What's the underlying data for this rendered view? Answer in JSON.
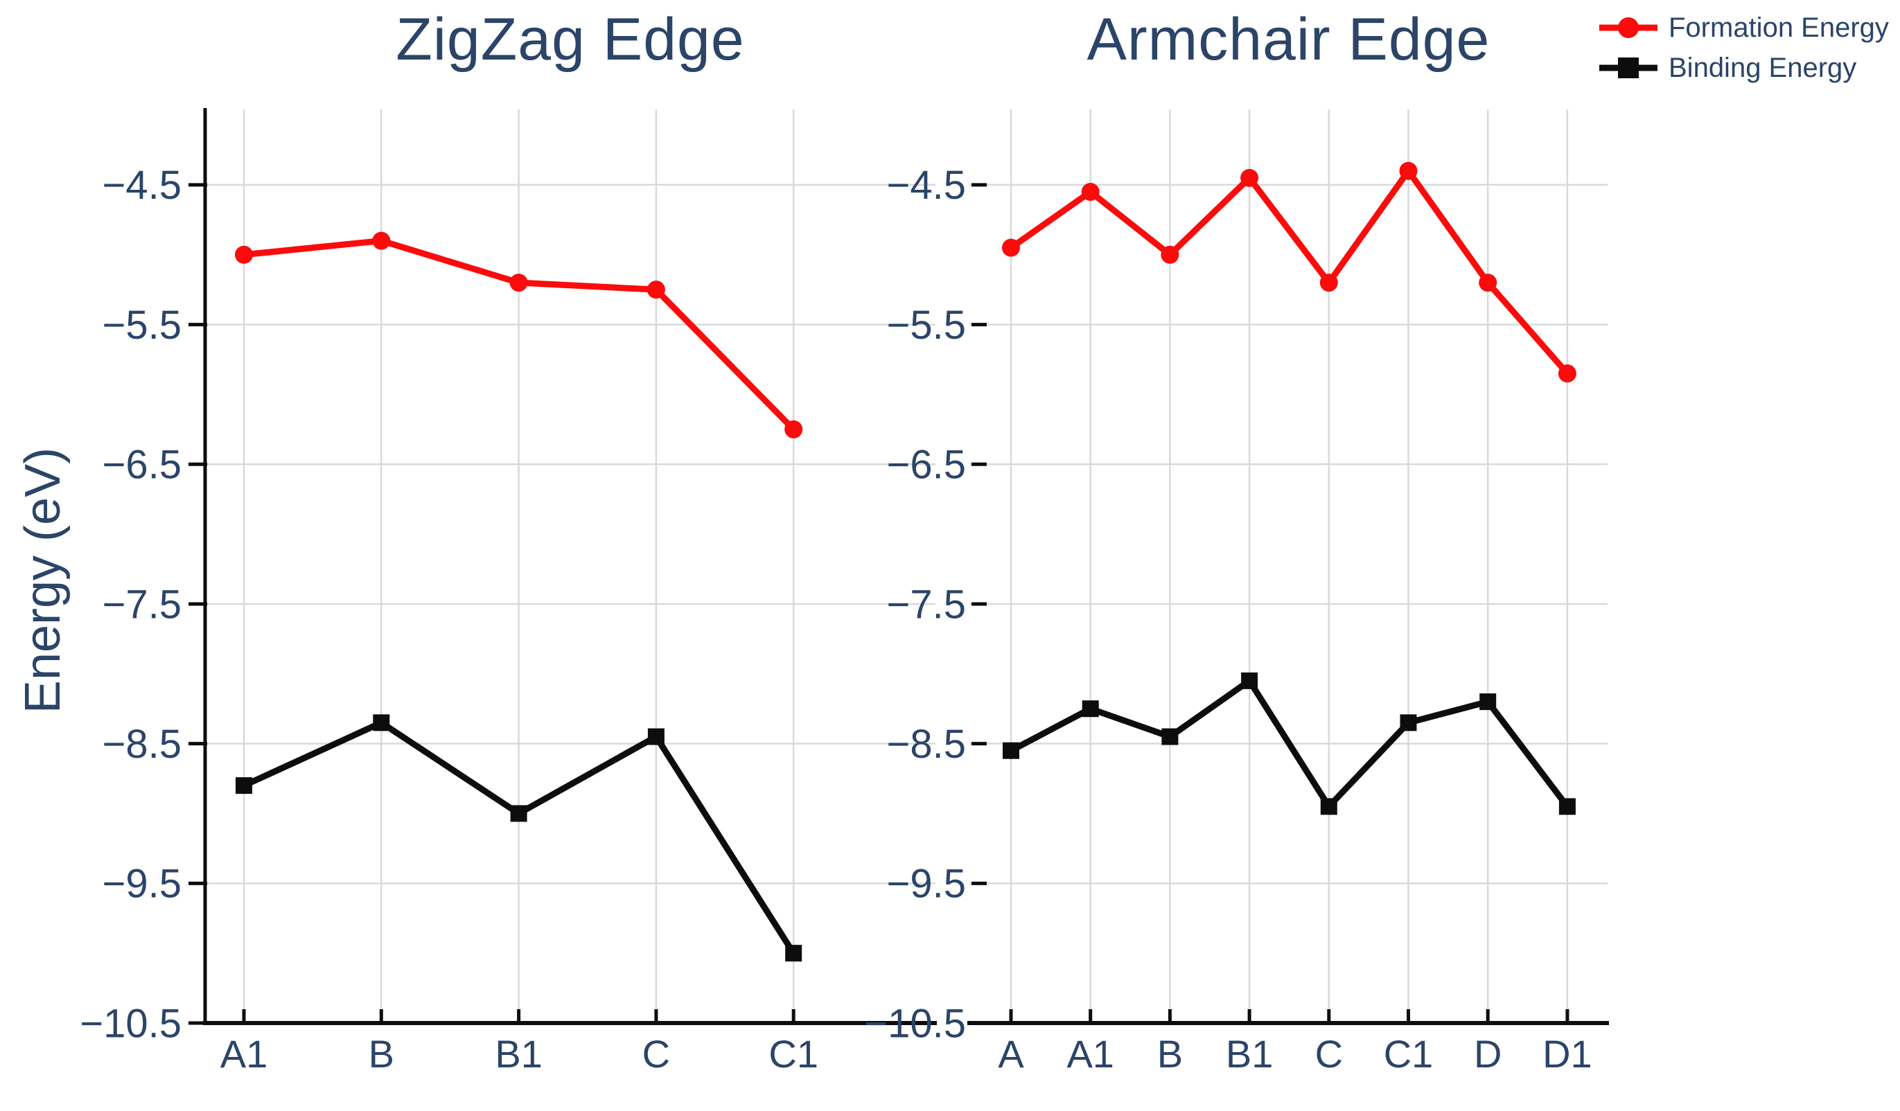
{
  "figure": {
    "background": "#ffffff",
    "text_color": "#2b4468",
    "grid_color": "#d9d9d9",
    "axis_color": "#0d0d0d",
    "ylabel": "Energy (eV)",
    "legend": {
      "position": "top-right",
      "items": [
        {
          "label": "Formation Energy",
          "color": "#fb0b0b",
          "marker": "circle"
        },
        {
          "label": "Binding Energy",
          "color": "#0d0d0d",
          "marker": "square"
        }
      ]
    }
  },
  "chart_data": [
    {
      "type": "line",
      "title": "ZigZag Edge",
      "categories": [
        "A1",
        "B",
        "B1",
        "C",
        "C1"
      ],
      "series": [
        {
          "name": "Formation Energy",
          "marker": "circle",
          "color": "#fb0b0b",
          "values": [
            -5.0,
            -4.9,
            -5.2,
            -5.25,
            -6.25
          ]
        },
        {
          "name": "Binding Energy",
          "marker": "square",
          "color": "#0d0d0d",
          "values": [
            -8.8,
            -8.35,
            -9.0,
            -8.45,
            -10.0
          ]
        }
      ],
      "xlabel": "",
      "ylabel": "Energy (eV)",
      "yticks": [
        -4.5,
        -5.5,
        -6.5,
        -7.5,
        -8.5,
        -9.5,
        -10.5
      ],
      "ylim": [
        -10.5,
        -3.96
      ],
      "grid": true,
      "legend_position": "top-right"
    },
    {
      "type": "line",
      "title": "Armchair Edge",
      "categories": [
        "A",
        "A1",
        "B",
        "B1",
        "C",
        "C1",
        "D",
        "D1"
      ],
      "series": [
        {
          "name": "Formation Energy",
          "marker": "circle",
          "color": "#fb0b0b",
          "values": [
            -4.95,
            -4.55,
            -5.0,
            -4.45,
            -5.2,
            -4.4,
            -5.2,
            -5.85
          ]
        },
        {
          "name": "Binding Energy",
          "marker": "square",
          "color": "#0d0d0d",
          "values": [
            -8.55,
            -8.25,
            -8.45,
            -8.05,
            -8.95,
            -8.35,
            -8.2,
            -8.95
          ]
        }
      ],
      "xlabel": "",
      "ylabel": "",
      "yticks": [
        -4.5,
        -5.5,
        -6.5,
        -7.5,
        -8.5,
        -9.5,
        -10.5
      ],
      "ylim": [
        -10.5,
        -3.96
      ],
      "grid": true
    }
  ]
}
